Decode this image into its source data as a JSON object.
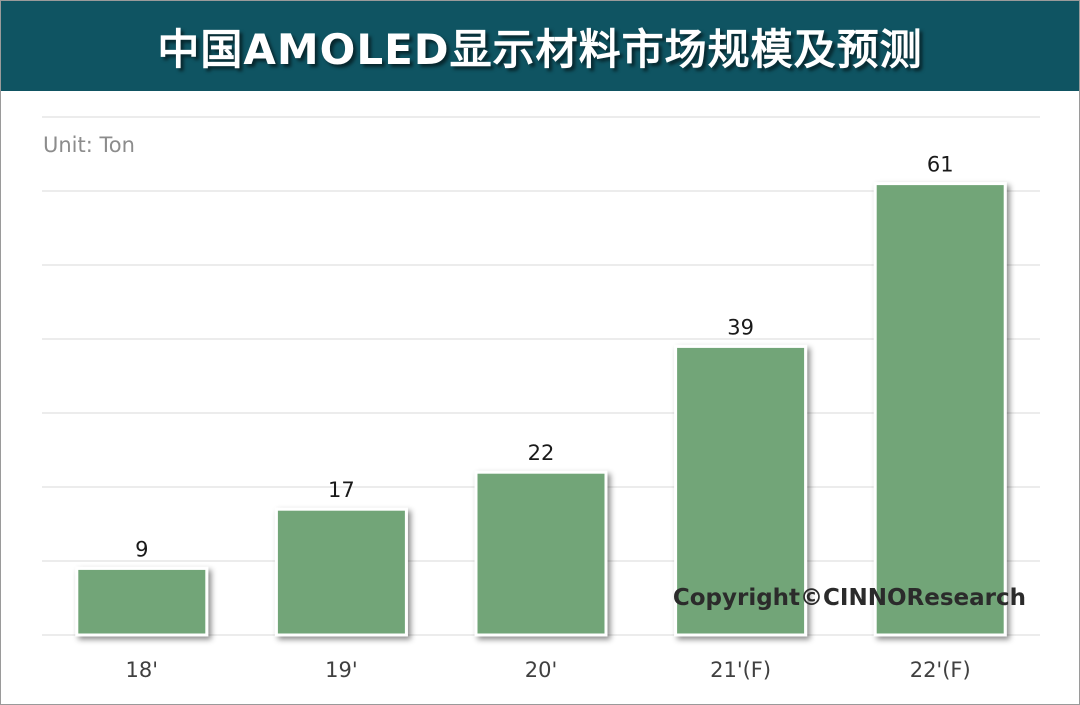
{
  "title": "中国AMOLED显示材料市场规模及预测",
  "colors": {
    "header_bg": "#0f5462",
    "bar_fill": "#72a578",
    "bar_stroke": "#ffffff",
    "grid": "#d9d9d9"
  },
  "chart_data": {
    "type": "bar",
    "unit_label": "Unit: Ton",
    "categories": [
      "18'",
      "19'",
      "20'",
      "21'(F)",
      "22'(F)"
    ],
    "values": [
      9,
      17,
      22,
      39,
      61
    ],
    "ylim": [
      0,
      70
    ],
    "grid": true,
    "data_labels": true,
    "annotation": "Copyright©CINNOResearch"
  }
}
